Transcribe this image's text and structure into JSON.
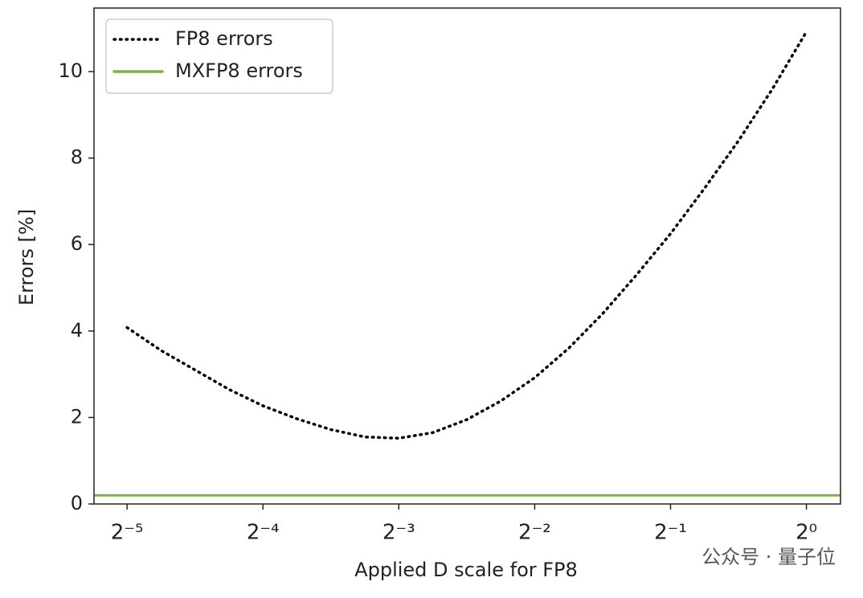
{
  "chart_data": {
    "type": "line",
    "xlabel": "Applied D scale for FP8",
    "ylabel": "Errors [%]",
    "xscale": "log2",
    "x": [
      0.03125,
      0.037163,
      0.044194,
      0.052556,
      0.0625,
      0.074325,
      0.088388,
      0.105112,
      0.125,
      0.148651,
      0.176777,
      0.210224,
      0.25,
      0.297302,
      0.353553,
      0.420448,
      0.5,
      0.594604,
      0.707107,
      0.840896,
      1
    ],
    "series": [
      {
        "name": "FP8 errors",
        "color": "#000000",
        "style": "dotted",
        "values": [
          4.08,
          3.55,
          3.1,
          2.65,
          2.27,
          1.97,
          1.72,
          1.55,
          1.52,
          1.65,
          1.95,
          2.38,
          2.92,
          3.6,
          4.4,
          5.3,
          6.25,
          7.3,
          8.4,
          9.6,
          10.92
        ]
      },
      {
        "name": "MXFP8 errors",
        "color": "#7cb342",
        "style": "hline",
        "value": 0.2
      }
    ],
    "xlim": [
      0.0264,
      1.19
    ],
    "ylim": [
      0,
      11.47
    ],
    "xticks": [
      {
        "value": 0.03125,
        "label": "2⁻⁵"
      },
      {
        "value": 0.0625,
        "label": "2⁻⁴"
      },
      {
        "value": 0.125,
        "label": "2⁻³"
      },
      {
        "value": 0.25,
        "label": "2⁻²"
      },
      {
        "value": 0.5,
        "label": "2⁻¹"
      },
      {
        "value": 1,
        "label": "2⁰"
      }
    ],
    "yticks": [
      0,
      2,
      4,
      6,
      8,
      10
    ],
    "legend": "upper left",
    "watermark": "公众号 · 量子位"
  }
}
